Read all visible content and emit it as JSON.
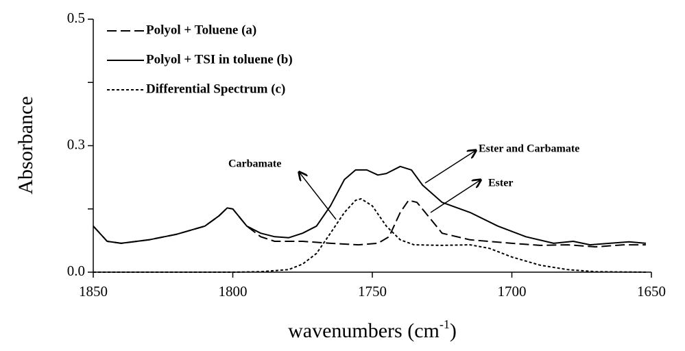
{
  "chart_data": {
    "type": "line",
    "xlabel": {
      "text": "wavenumbers  (cm",
      "sup": "-1",
      "end": ")"
    },
    "ylabel": "Absorbance",
    "xlim": [
      1850,
      1650
    ],
    "xticks": [
      1850,
      1800,
      1750,
      1700,
      1650
    ],
    "ylim": [
      0,
      0.5
    ],
    "yticks": [
      {
        "value": 0,
        "label": "0.0"
      },
      {
        "value": 0.25,
        "label": "0.3"
      },
      0.5
    ],
    "yminor": [
      0.125,
      0.375
    ],
    "legend": "top-left",
    "series": [
      {
        "name": "Polyol + Toluene (a)",
        "color": "#000000",
        "style": "dashed",
        "x": [
          1850,
          1845,
          1840,
          1830,
          1820,
          1810,
          1805,
          1802,
          1800,
          1795,
          1790,
          1785,
          1775,
          1765,
          1755,
          1748,
          1744,
          1740,
          1737,
          1734,
          1730,
          1725,
          1715,
          1700,
          1690,
          1680,
          1670,
          1660,
          1652
        ],
        "values": [
          0.091,
          0.061,
          0.057,
          0.064,
          0.075,
          0.091,
          0.111,
          0.127,
          0.125,
          0.091,
          0.07,
          0.061,
          0.061,
          0.057,
          0.054,
          0.057,
          0.07,
          0.118,
          0.142,
          0.138,
          0.111,
          0.077,
          0.064,
          0.057,
          0.053,
          0.054,
          0.05,
          0.054,
          0.054
        ]
      },
      {
        "name": "Polyol + TSI in toluene (b)",
        "color": "#000000",
        "style": "solid",
        "x": [
          1850,
          1845,
          1840,
          1830,
          1820,
          1810,
          1805,
          1802,
          1800,
          1795,
          1790,
          1785,
          1780,
          1775,
          1770,
          1765,
          1760,
          1756,
          1752,
          1748,
          1745,
          1740,
          1736,
          1732,
          1725,
          1715,
          1705,
          1695,
          1685,
          1678,
          1672,
          1665,
          1658,
          1652
        ],
        "values": [
          0.091,
          0.061,
          0.057,
          0.064,
          0.075,
          0.091,
          0.111,
          0.127,
          0.125,
          0.091,
          0.077,
          0.07,
          0.068,
          0.077,
          0.091,
          0.131,
          0.183,
          0.202,
          0.202,
          0.192,
          0.195,
          0.209,
          0.202,
          0.172,
          0.138,
          0.118,
          0.091,
          0.07,
          0.057,
          0.061,
          0.054,
          0.057,
          0.06,
          0.057
        ]
      },
      {
        "name": "Differential Spectrum (c)",
        "color": "#000000",
        "style": "dotted",
        "x": [
          1850,
          1800,
          1790,
          1780,
          1775,
          1770,
          1765,
          1760,
          1756,
          1754,
          1750,
          1745,
          1740,
          1735,
          1725,
          1715,
          1708,
          1700,
          1690,
          1680,
          1670,
          1652
        ],
        "values": [
          0,
          0,
          0.001,
          0.005,
          0.016,
          0.037,
          0.077,
          0.118,
          0.142,
          0.145,
          0.131,
          0.091,
          0.064,
          0.054,
          0.053,
          0.054,
          0.047,
          0.03,
          0.014,
          0.005,
          0.001,
          0
        ]
      }
    ],
    "annotations": [
      "Carbamate",
      "Ester and Carbamate",
      "Ester"
    ]
  }
}
